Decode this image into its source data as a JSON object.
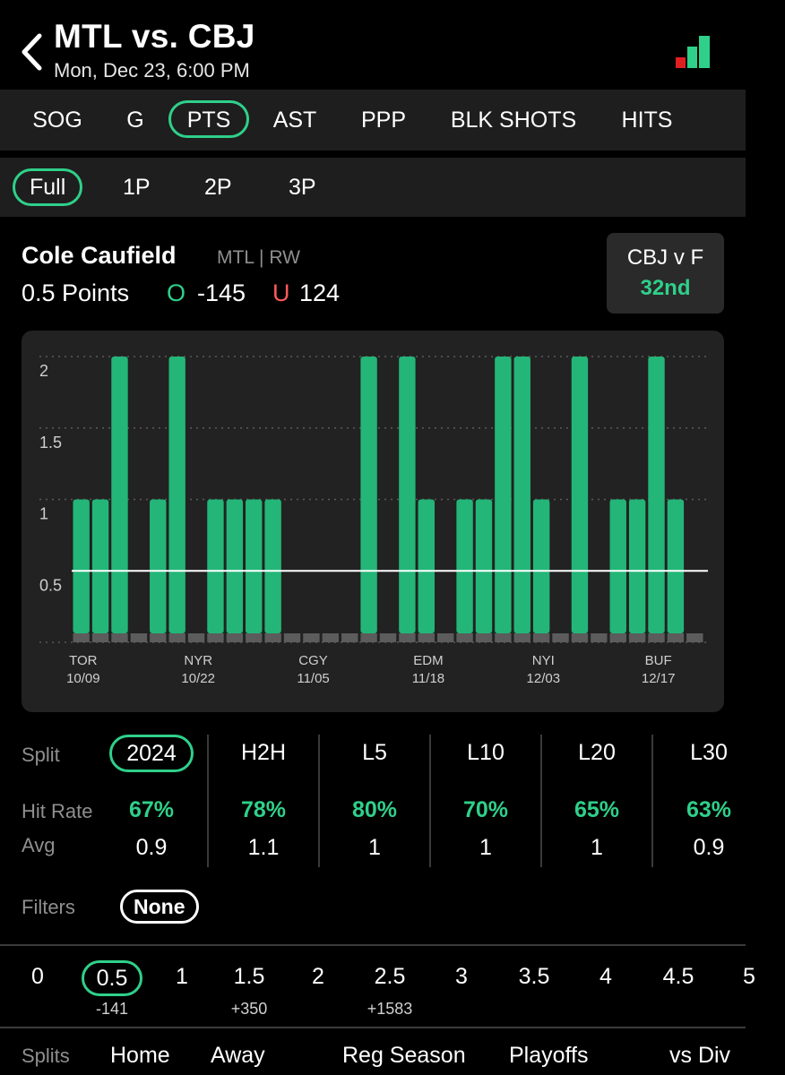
{
  "header": {
    "title": "MTL vs. CBJ",
    "subtitle": "Mon, Dec 23, 6:00 PM"
  },
  "stat_tabs": [
    "SOG",
    "G",
    "PTS",
    "AST",
    "PPP",
    "BLK SHOTS",
    "HITS"
  ],
  "stat_tab_active": "PTS",
  "period_tabs": [
    "Full",
    "1P",
    "2P",
    "3P"
  ],
  "period_tab_active": "Full",
  "player": {
    "name": "Cole Caufield",
    "team": "MTL | RW",
    "prop": "0.5 Points",
    "over_label": "O",
    "over_odds": "-145",
    "under_label": "U",
    "under_odds": "124"
  },
  "matchup": {
    "title": "CBJ v F",
    "rank": "32nd"
  },
  "colors": {
    "accent": "#2fd08a",
    "bar": "#23b678",
    "under": "#ff5a5a",
    "card": "#222222"
  },
  "chart_data": {
    "type": "bar",
    "values": [
      1,
      1,
      2,
      0,
      1,
      2,
      0,
      1,
      1,
      1,
      1,
      0,
      0,
      0,
      0,
      2,
      0,
      2,
      1,
      0,
      1,
      1,
      2,
      2,
      1,
      0,
      2,
      0,
      1,
      1,
      2,
      1,
      0
    ],
    "line": 0.5,
    "ylim": [
      0,
      2
    ],
    "yticks": [
      "0.5",
      "1",
      "1.5",
      "2"
    ],
    "xticks": [
      {
        "index": 0,
        "team": "TOR",
        "date": "10/09"
      },
      {
        "index": 6,
        "team": "NYR",
        "date": "10/22"
      },
      {
        "index": 12,
        "team": "CGY",
        "date": "11/05"
      },
      {
        "index": 18,
        "team": "EDM",
        "date": "11/18"
      },
      {
        "index": 24,
        "team": "NYI",
        "date": "12/03"
      },
      {
        "index": 30,
        "team": "BUF",
        "date": "12/17"
      }
    ]
  },
  "splits": {
    "label_split": "Split",
    "label_hit": "Hit Rate",
    "label_avg": "Avg",
    "columns": [
      {
        "name": "2024",
        "hit": "67%",
        "avg": "0.9"
      },
      {
        "name": "H2H",
        "hit": "78%",
        "avg": "1.1"
      },
      {
        "name": "L5",
        "hit": "80%",
        "avg": "1"
      },
      {
        "name": "L10",
        "hit": "70%",
        "avg": "1"
      },
      {
        "name": "L20",
        "hit": "65%",
        "avg": "1"
      },
      {
        "name": "L30",
        "hit": "63%",
        "avg": "0.9"
      }
    ]
  },
  "filters": {
    "label": "Filters",
    "value": "None"
  },
  "lines": [
    {
      "value": "0",
      "odds": ""
    },
    {
      "value": "0.5",
      "odds": "-141"
    },
    {
      "value": "1",
      "odds": ""
    },
    {
      "value": "1.5",
      "odds": "+350"
    },
    {
      "value": "2",
      "odds": ""
    },
    {
      "value": "2.5",
      "odds": "+1583"
    },
    {
      "value": "3",
      "odds": ""
    },
    {
      "value": "3.5",
      "odds": ""
    },
    {
      "value": "4",
      "odds": ""
    },
    {
      "value": "4.5",
      "odds": ""
    },
    {
      "value": "5",
      "odds": ""
    }
  ],
  "line_active": "0.5",
  "bottom_splits": {
    "label": "Splits",
    "items": [
      "Home",
      "Away",
      "Reg Season",
      "Playoffs",
      "vs Div"
    ]
  }
}
